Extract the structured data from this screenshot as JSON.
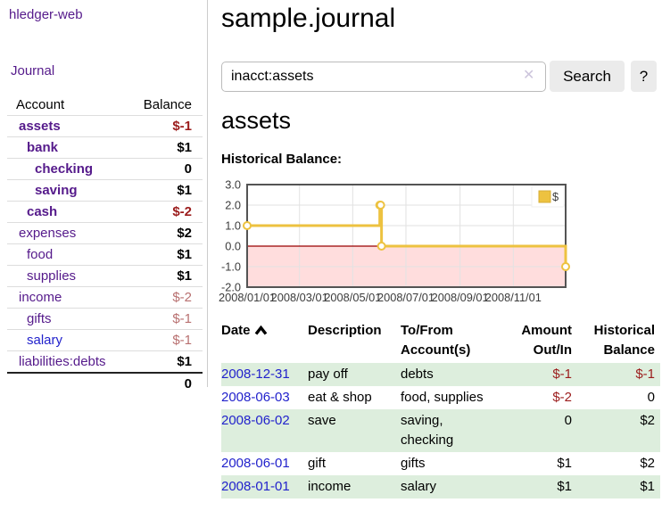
{
  "app": {
    "title": "hledger-web",
    "nav_journal": "Journal"
  },
  "sidebar": {
    "accounts_header": {
      "account": "Account",
      "balance": "Balance"
    },
    "accounts": [
      {
        "name": "assets",
        "level": 1,
        "bold": true,
        "balance": "$-1",
        "balance_style": "neg"
      },
      {
        "name": "bank",
        "level": 2,
        "bold": true,
        "balance": "$1",
        "balance_style": "pos"
      },
      {
        "name": "checking",
        "level": 3,
        "bold": true,
        "balance": "0",
        "balance_style": "pos"
      },
      {
        "name": "saving",
        "level": 3,
        "bold": true,
        "balance": "$1",
        "balance_style": "pos"
      },
      {
        "name": "cash",
        "level": 2,
        "bold": true,
        "balance": "$-2",
        "balance_style": "neg"
      },
      {
        "name": "expenses",
        "level": 1,
        "bold": false,
        "balance": "$2",
        "balance_style": "pos"
      },
      {
        "name": "food",
        "level": 2,
        "bold": false,
        "balance": "$1",
        "balance_style": "pos"
      },
      {
        "name": "supplies",
        "level": 2,
        "bold": false,
        "balance": "$1",
        "balance_style": "pos"
      },
      {
        "name": "income",
        "level": 1,
        "bold": false,
        "balance": "$-2",
        "balance_style": "neg-faded"
      },
      {
        "name": "gifts",
        "level": 2,
        "bold": false,
        "balance": "$-1",
        "balance_style": "neg-faded"
      },
      {
        "name": "salary",
        "level": 2,
        "bold": false,
        "link_style": "unvisited",
        "balance": "$-1",
        "balance_style": "neg-faded"
      },
      {
        "name": "liabilities:debts",
        "level": 1,
        "bold": false,
        "balance": "$1",
        "balance_style": "pos"
      }
    ],
    "total": "0"
  },
  "header": {
    "title": "sample.journal"
  },
  "search": {
    "value": "inacct:assets",
    "clear_icon": "✕",
    "button": "Search",
    "help_button": "?"
  },
  "account_page": {
    "heading": "assets",
    "chart_label": "Historical Balance:"
  },
  "chart_data": {
    "type": "line",
    "title": "Historical Balance",
    "step": true,
    "series": [
      {
        "name": "$",
        "color": "#edc240",
        "points": [
          [
            "2008-01-01",
            1
          ],
          [
            "2008-06-01",
            2
          ],
          [
            "2008-06-02",
            2
          ],
          [
            "2008-06-03",
            0
          ],
          [
            "2008-12-31",
            -1
          ]
        ]
      }
    ],
    "xlim": [
      "2008-01-01",
      "2008-12-31"
    ],
    "ylim": [
      -2,
      3
    ],
    "yticks": [
      "-2.0",
      "-1.0",
      "0.0",
      "1.0",
      "2.0",
      "3.0"
    ],
    "xticks": [
      "2008/01/01",
      "2008/03/01",
      "2008/05/01",
      "2008/07/01",
      "2008/09/01",
      "2008/11/01"
    ],
    "legend_position": "top-right",
    "grid": true,
    "negative_region_color": "#ffdddd",
    "zero_line_color": "#990000"
  },
  "table": {
    "headers": [
      {
        "line1": "Date",
        "line2": "",
        "sorted": "asc"
      },
      {
        "line1": "Description",
        "line2": ""
      },
      {
        "line1": "To/From",
        "line2": "Account(s)"
      },
      {
        "line1": "Amount",
        "line2": "Out/In"
      },
      {
        "line1": "Historical",
        "line2": "Balance"
      }
    ],
    "rows": [
      {
        "date": "2008-12-31",
        "description": "pay off",
        "accounts": "debts",
        "amount": {
          "text": "$-1",
          "style": "neg"
        },
        "balance": {
          "text": "$-1",
          "style": "neg"
        }
      },
      {
        "date": "2008-06-03",
        "description": "eat & shop",
        "accounts": "food, supplies",
        "amount": {
          "text": "$-2",
          "style": "neg"
        },
        "balance": {
          "text": "0",
          "style": "pos"
        }
      },
      {
        "date": "2008-06-02",
        "description": "save",
        "accounts": "saving,\nchecking",
        "amount": {
          "text": "0",
          "style": "pos"
        },
        "balance": {
          "text": "$2",
          "style": "pos"
        }
      },
      {
        "date": "2008-06-01",
        "description": "gift",
        "accounts": "gifts",
        "amount": {
          "text": "$1",
          "style": "pos"
        },
        "balance": {
          "text": "$2",
          "style": "pos"
        }
      },
      {
        "date": "2008-01-01",
        "description": "income",
        "accounts": "salary",
        "amount": {
          "text": "$1",
          "style": "pos"
        },
        "balance": {
          "text": "$1",
          "style": "pos"
        }
      }
    ]
  },
  "colors": {
    "link_visited": "#551a8b",
    "link_unvisited": "#2222cc",
    "negative": "#9b1c1c",
    "negative_faded": "#b87070",
    "row_stripe_green": "#ddeedd",
    "series_gold": "#edc240",
    "negative_region_pink": "#ffdddd",
    "zero_line_red": "#990000",
    "chart_border": "#545454"
  }
}
